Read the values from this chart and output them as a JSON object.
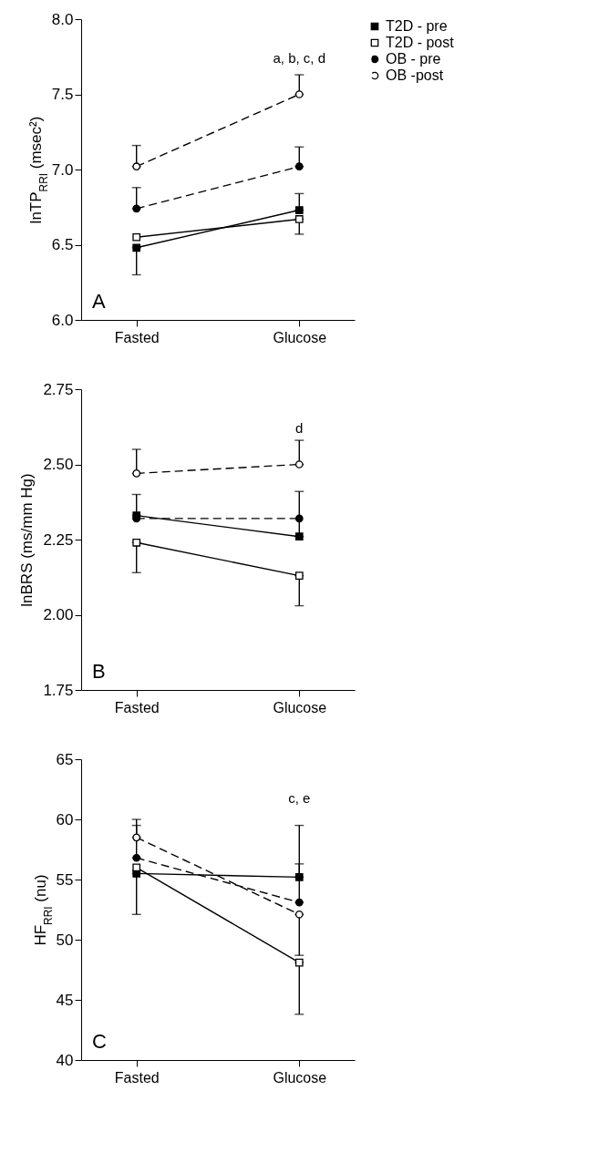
{
  "chart_data": [
    {
      "type": "line",
      "ylabel": "lnTP$_{RRI}$ (msec²)",
      "categories": [
        "Fasted",
        "Glucose"
      ],
      "ylim": [
        6.0,
        8.0
      ],
      "yticks": [
        {
          "value": 6,
          "label": "6.0"
        },
        6.5,
        {
          "value": 7,
          "label": "7.0"
        },
        7.5,
        {
          "value": 8,
          "label": "8.0"
        }
      ],
      "grid": false,
      "legend": "top right",
      "series": [
        {
          "name": "T2D - pre",
          "color": "#000000",
          "marker": "square",
          "line_style": "solid",
          "values": [
            6.48,
            6.73
          ],
          "errors": [
            [
              6.3,
              6.48
            ],
            [
              6.73,
              6.84
            ]
          ]
        },
        {
          "name": "T2D - post",
          "color": "#000000",
          "marker": "square-open",
          "line_style": "solid",
          "values": [
            6.55,
            6.67
          ],
          "errors": [
            null,
            [
              6.57,
              6.67
            ]
          ]
        },
        {
          "name": "OB - pre",
          "color": "#000000",
          "marker": "circle",
          "line_style": "dashed",
          "values": [
            6.74,
            7.02
          ],
          "errors": [
            [
              6.74,
              6.88
            ],
            [
              7.02,
              7.15
            ]
          ]
        },
        {
          "name": "OB -post",
          "color": "#000000",
          "marker": "circle-open",
          "line_style": "dashed",
          "values": [
            7.02,
            7.5
          ],
          "errors": [
            [
              7.02,
              7.16
            ],
            [
              7.5,
              7.63
            ]
          ]
        }
      ],
      "annotations": [
        "a, b, c, d",
        "A"
      ]
    },
    {
      "type": "line",
      "ylabel": "lnBRS (ms/mm Hg)",
      "categories": [
        "Fasted",
        "Glucose"
      ],
      "ylim": [
        1.75,
        2.75
      ],
      "yticks": [
        1.75,
        {
          "value": 2,
          "label": "2.00"
        },
        2.25,
        {
          "value": 2.5,
          "label": "2.50"
        },
        2.75
      ],
      "grid": false,
      "legend": false,
      "series": [
        {
          "color": "#000000",
          "marker": "square",
          "line_style": "solid",
          "values": [
            2.33,
            2.26
          ],
          "errors": [
            [
              2.33,
              2.4
            ],
            [
              2.26,
              2.41
            ]
          ]
        },
        {
          "color": "#000000",
          "marker": "square-open",
          "line_style": "solid",
          "values": [
            2.24,
            2.13
          ],
          "errors": [
            [
              2.14,
              2.24
            ],
            [
              2.03,
              2.13
            ]
          ]
        },
        {
          "color": "#000000",
          "marker": "circle",
          "line_style": "dashed",
          "values": [
            2.32,
            2.32
          ],
          "errors": [
            null,
            null
          ]
        },
        {
          "color": "#000000",
          "marker": "circle-open",
          "line_style": "dashed",
          "values": [
            2.47,
            2.5
          ],
          "errors": [
            [
              2.47,
              2.55
            ],
            [
              2.5,
              2.58
            ]
          ]
        }
      ],
      "annotations": [
        "d",
        "B"
      ]
    },
    {
      "type": "line",
      "ylabel": "HF$_{RRI}$ (nu)",
      "categories": [
        "Fasted",
        "Glucose"
      ],
      "ylim": [
        40,
        65
      ],
      "yticks": [
        40,
        45,
        50,
        55,
        60,
        65
      ],
      "grid": false,
      "legend": false,
      "series": [
        {
          "color": "#000000",
          "marker": "square",
          "line_style": "solid",
          "values": [
            55.5,
            55.2
          ],
          "errors": [
            [
              52.1,
              55.5
            ],
            [
              55.2,
              59.5
            ]
          ]
        },
        {
          "color": "#000000",
          "marker": "square-open",
          "line_style": "solid",
          "values": [
            56.0,
            48.1
          ],
          "errors": [
            null,
            [
              43.8,
              48.1
            ]
          ]
        },
        {
          "color": "#000000",
          "marker": "circle",
          "line_style": "dashed",
          "values": [
            56.8,
            53.1
          ],
          "errors": [
            [
              56.8,
              59.5
            ],
            [
              53.1,
              56.3
            ]
          ]
        },
        {
          "color": "#000000",
          "marker": "circle-open",
          "line_style": "dashed",
          "values": [
            58.5,
            52.1
          ],
          "errors": [
            [
              58.5,
              60.0
            ],
            [
              48.7,
              52.1
            ]
          ]
        }
      ],
      "annotations": [
        "c, e",
        "C"
      ]
    }
  ]
}
